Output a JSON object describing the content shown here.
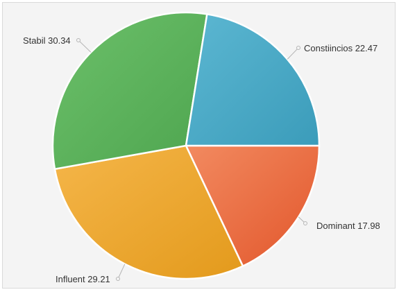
{
  "chart_data": {
    "type": "pie",
    "start_angle_deg": 0,
    "direction": "clockwise",
    "slices": [
      {
        "label": "Dominant",
        "value": 17.98,
        "display": "Dominant 17.98",
        "color": "#e2562b",
        "color_light": "#f28a60"
      },
      {
        "label": "Influent",
        "value": 29.21,
        "display": "Influent 29.21",
        "color": "#e39a1c",
        "color_light": "#f5b64a"
      },
      {
        "label": "Stabil",
        "value": 30.34,
        "display": "Stabil 30.34",
        "color": "#4ea54f",
        "color_light": "#6cc06a"
      },
      {
        "label": "Constiincios",
        "value": 22.47,
        "display": "Constiincios 22.47",
        "color": "#3b9cba",
        "color_light": "#5cb7d2"
      }
    ]
  }
}
